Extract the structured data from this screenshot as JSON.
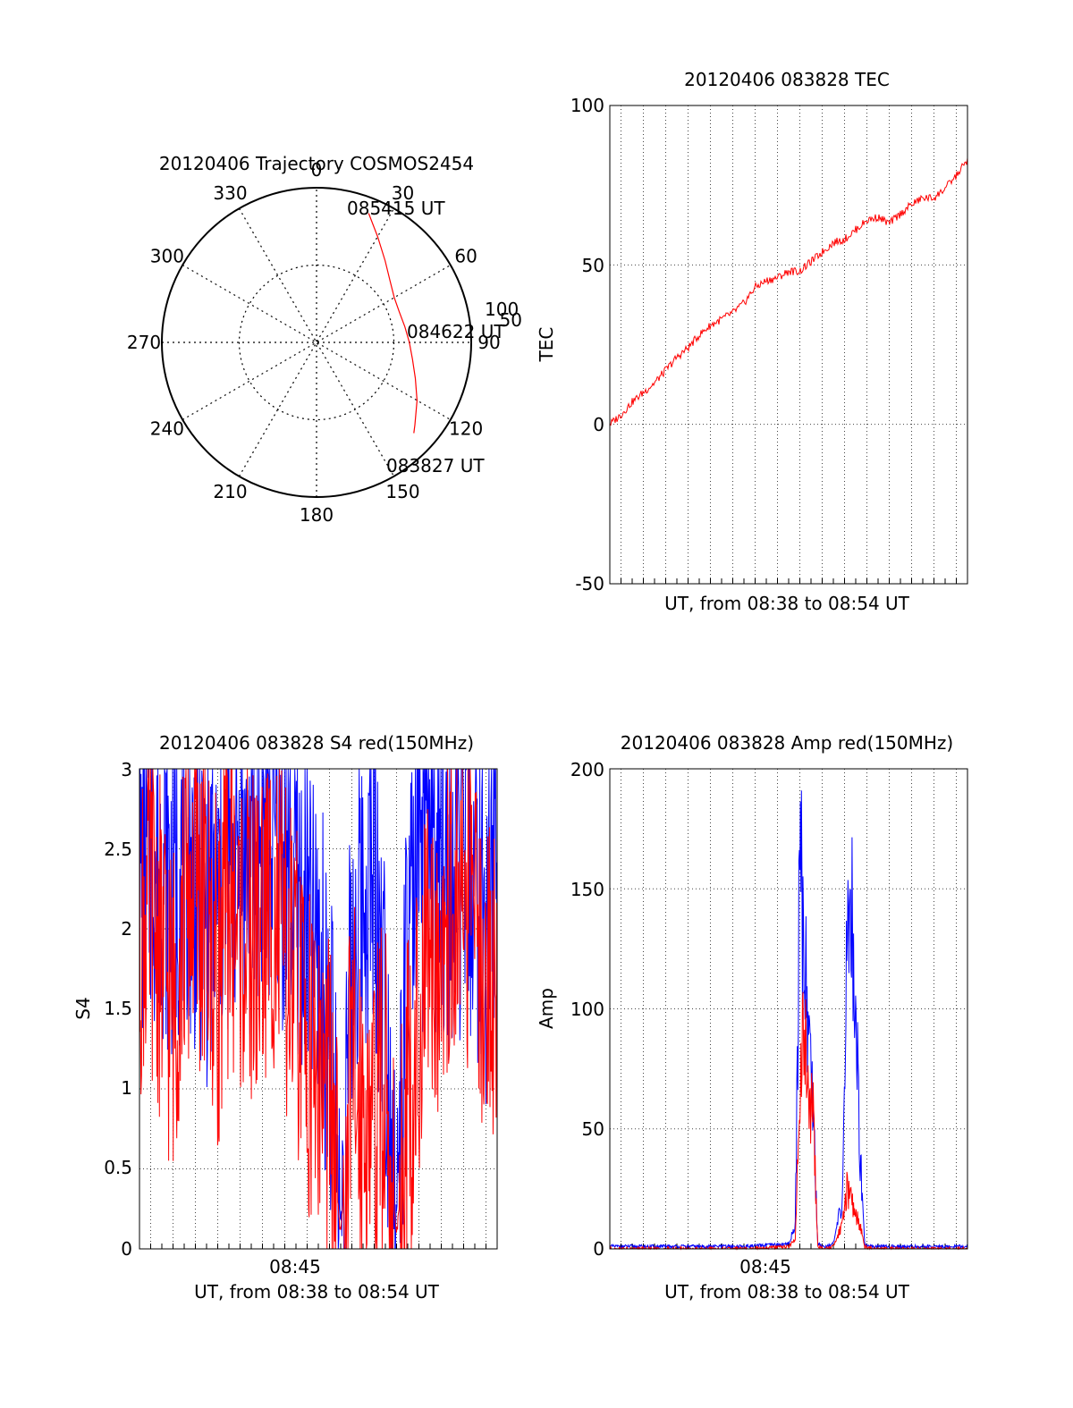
{
  "colors": {
    "red": "#ff0000",
    "blue": "#0000ff",
    "axis": "#000000"
  },
  "chart_data": [
    {
      "type": "polar",
      "title": "20120406 Trajectory COSMOS2454",
      "angle_labels": [
        "0",
        "30",
        "60",
        "90",
        "120",
        "150",
        "180",
        "210",
        "240",
        "270",
        "300",
        "330"
      ],
      "radius_labels": [
        "50",
        "100"
      ],
      "trajectory": {
        "color": "red",
        "points": [
          {
            "az": 22,
            "r": 90
          },
          {
            "az": 30,
            "r": 79
          },
          {
            "az": 40,
            "r": 69
          },
          {
            "az": 50,
            "r": 62
          },
          {
            "az": 60,
            "r": 58
          },
          {
            "az": 70,
            "r": 57
          },
          {
            "az": 80,
            "r": 58
          },
          {
            "az": 90,
            "r": 60
          },
          {
            "az": 100,
            "r": 63
          },
          {
            "az": 110,
            "r": 68
          },
          {
            "az": 120,
            "r": 75
          },
          {
            "az": 130,
            "r": 83
          },
          {
            "az": 133,
            "r": 86
          }
        ]
      },
      "time_labels": [
        "085415 UT",
        "084622 UT",
        "083827 UT"
      ]
    },
    {
      "type": "line",
      "title": "20120406 083828 TEC",
      "xlabel": "UT, from 08:38 to 08:54 UT",
      "ylabel": "TEC",
      "ylim": [
        -50,
        100
      ],
      "yticks": [
        "100",
        "50",
        "0",
        "-50"
      ],
      "x_range_minutes": [
        0,
        16
      ],
      "series": [
        {
          "color": "red",
          "x": [
            0,
            0.5,
            1,
            1.5,
            2,
            2.5,
            3,
            3.5,
            4,
            4.5,
            5,
            5.5,
            6,
            6.5,
            7,
            7.5,
            8,
            8.5,
            9,
            9.5,
            10,
            10.5,
            11,
            11.5,
            12,
            12.5,
            13,
            13.5,
            14,
            14.5,
            15,
            15.5,
            16
          ],
          "y": [
            0,
            3,
            7,
            10,
            13,
            17,
            21,
            24,
            28,
            31,
            33,
            35,
            38,
            43,
            45,
            46,
            48,
            48,
            51,
            54,
            57,
            58,
            61,
            64,
            65,
            63,
            66,
            69,
            71,
            71,
            74,
            78,
            83
          ]
        }
      ]
    },
    {
      "type": "line",
      "title": "20120406 083828 S4 red(150MHz)",
      "xlabel": "UT, from 08:38 to 08:54 UT",
      "ylabel": "S4",
      "ylim": [
        0,
        3
      ],
      "yticks": [
        "3",
        "2.5",
        "2",
        "1.5",
        "1",
        "0.5",
        "0"
      ],
      "xtick_label": "08:45",
      "x_range_minutes": [
        0,
        16
      ],
      "series": [
        {
          "color": "blue",
          "x": [
            0,
            0.5,
            1,
            1.5,
            2,
            2.5,
            3,
            3.5,
            4,
            4.5,
            5,
            5.5,
            6,
            6.5,
            7,
            7.5,
            8,
            8.5,
            9,
            9.5,
            10,
            10.5,
            11,
            11.5,
            12,
            12.5,
            13,
            13.5,
            14,
            14.5,
            15,
            15.5,
            16
          ],
          "y": [
            2.3,
            2.5,
            2.4,
            2.2,
            2.5,
            2.3,
            2.1,
            2.2,
            2.4,
            2.5,
            2.3,
            2.6,
            2.6,
            2.4,
            2.3,
            2.0,
            1.8,
            1.4,
            0.15,
            1.8,
            2.2,
            2.4,
            1.5,
            0.2,
            1.8,
            2.4,
            2.5,
            2.4,
            2.2,
            2.5,
            2.3,
            2.0,
            2.4
          ]
        },
        {
          "color": "red",
          "x": [
            0,
            0.5,
            1,
            1.5,
            2,
            2.5,
            3,
            3.5,
            4,
            4.5,
            5,
            5.5,
            6,
            6.5,
            7,
            7.5,
            8,
            8.5,
            9,
            9.5,
            10,
            10.5,
            11,
            11.5,
            12,
            12.5,
            13,
            13.5,
            14,
            14.5,
            15,
            15.5,
            16
          ],
          "y": [
            2.0,
            2.2,
            1.8,
            1.5,
            2.1,
            2.3,
            2.0,
            1.7,
            2.2,
            2.0,
            1.9,
            2.0,
            2.2,
            1.8,
            1.6,
            1.3,
            1.1,
            0.9,
            0.08,
            1.1,
            0.9,
            0.8,
            1.0,
            0.08,
            0.9,
            1.3,
            1.8,
            2.0,
            2.1,
            2.2,
            2.0,
            1.8,
            1.6
          ]
        }
      ]
    },
    {
      "type": "line",
      "title": "20120406 083828 Amp red(150MHz)",
      "xlabel": "UT, from 08:38 to 08:54 UT",
      "ylabel": "Amp",
      "ylim": [
        0,
        200
      ],
      "yticks": [
        "200",
        "150",
        "100",
        "50",
        "0"
      ],
      "xtick_label": "08:45",
      "x_range_minutes": [
        0,
        16
      ],
      "series": [
        {
          "color": "blue",
          "x": [
            0,
            2,
            4,
            6,
            8,
            8.3,
            8.5,
            8.7,
            8.9,
            9.1,
            9.3,
            9.6,
            10.0,
            10.4,
            10.6,
            10.8,
            11.0,
            11.2,
            11.4,
            11.8,
            12.5,
            14,
            16
          ],
          "y": [
            1,
            1,
            1,
            1,
            2,
            10,
            160,
            130,
            90,
            60,
            2,
            1,
            2,
            20,
            120,
            145,
            100,
            40,
            2,
            1,
            1,
            1,
            1
          ]
        },
        {
          "color": "red",
          "x": [
            0,
            2,
            4,
            6,
            8,
            8.3,
            8.5,
            8.7,
            8.9,
            9.1,
            9.3,
            9.6,
            10.0,
            10.4,
            10.6,
            10.8,
            11.0,
            11.2,
            11.4,
            11.8,
            12.5,
            14,
            16
          ],
          "y": [
            0,
            0,
            0,
            0,
            1,
            4,
            70,
            90,
            60,
            55,
            1,
            0,
            1,
            10,
            25,
            20,
            15,
            10,
            1,
            0,
            0,
            0,
            0
          ]
        }
      ]
    }
  ]
}
